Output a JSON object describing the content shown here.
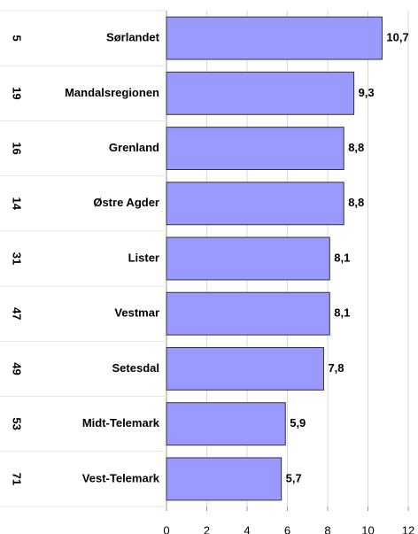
{
  "chart_data": {
    "type": "bar",
    "orientation": "horizontal",
    "ranks": [
      5,
      19,
      16,
      14,
      31,
      47,
      49,
      53,
      71
    ],
    "categories": [
      "Sørlandet",
      "Mandalsregionen",
      "Grenland",
      "Østre Agder",
      "Lister",
      "Vestmar",
      "Setesdal",
      "Midt-Telemark",
      "Vest-Telemark"
    ],
    "values": [
      10.7,
      9.3,
      8.8,
      8.8,
      8.1,
      8.1,
      7.8,
      5.9,
      5.7
    ],
    "value_labels": [
      "10,7",
      "9,3",
      "8,8",
      "8,8",
      "8,1",
      "8,1",
      "7,8",
      "5,9",
      "5,7"
    ],
    "color": "#9999ff",
    "xlim": [
      0,
      12
    ],
    "xticks": [
      0,
      2,
      4,
      6,
      8,
      10,
      12
    ],
    "grid": true
  }
}
